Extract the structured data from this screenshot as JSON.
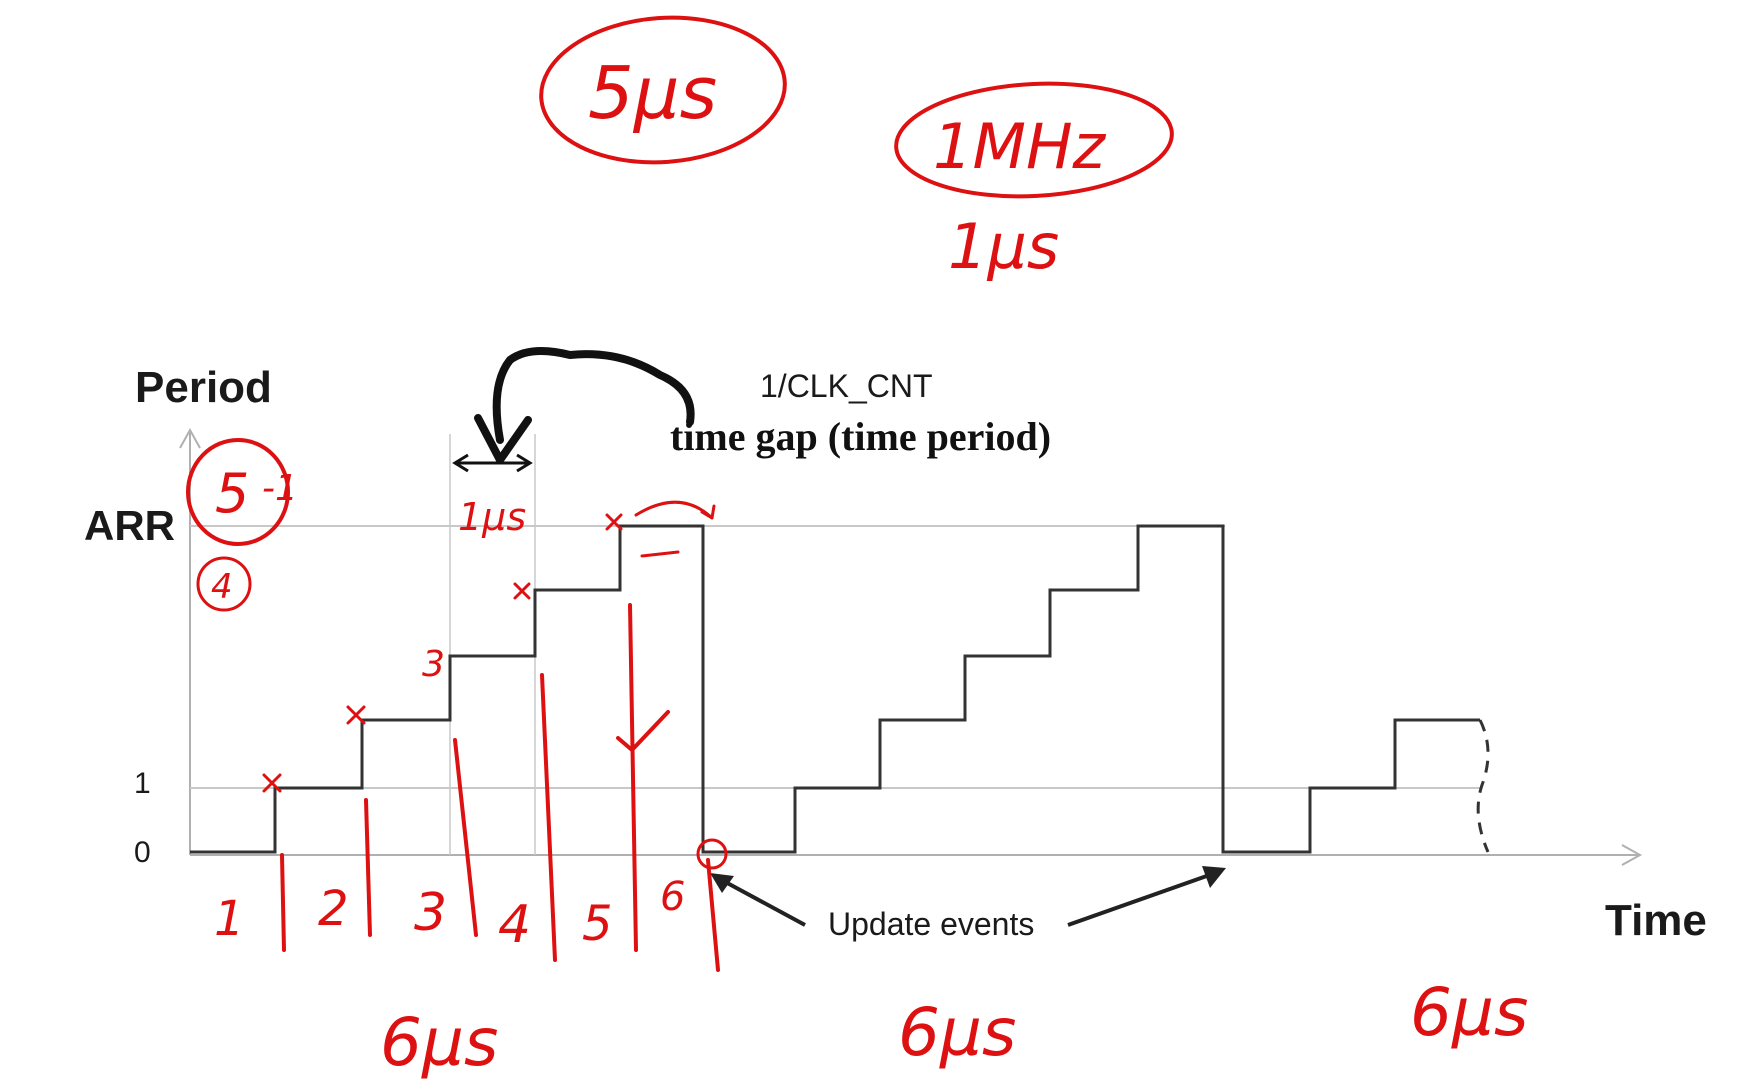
{
  "diagram": {
    "y_axis_label": "Period",
    "x_axis_label": "Time",
    "y_ticks": [
      "ARR",
      "1",
      "0"
    ],
    "clk_label": "1/CLK_CNT",
    "gap_label": "time gap (time period)",
    "update_label": "Update events",
    "counter_steps": [
      0,
      1,
      2,
      3,
      4,
      5
    ]
  },
  "annotations": {
    "top_left": "5µs",
    "top_right": "1MHz",
    "below_right": "1µs",
    "gap_width": "1µs",
    "arr_value": "5",
    "arr_sub": "-1",
    "circled_four": "4",
    "step_marker": "3",
    "intervals": [
      "1",
      "2",
      "3",
      "4",
      "5",
      "6"
    ],
    "periods": [
      "6µs",
      "6µs",
      "6µs"
    ]
  },
  "colors": {
    "ink": "#dd1111",
    "line": "#333333",
    "grid": "#c8c8c8"
  }
}
